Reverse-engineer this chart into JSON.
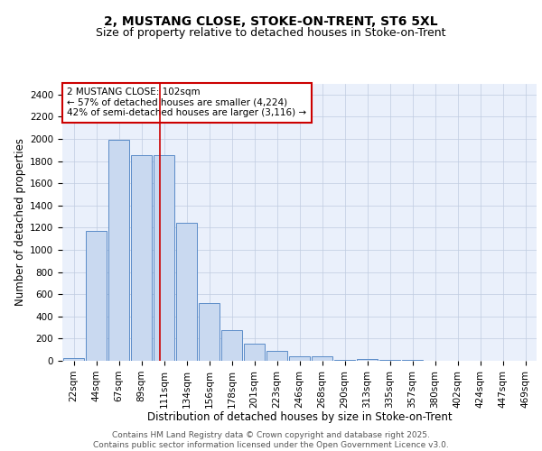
{
  "title1": "2, MUSTANG CLOSE, STOKE-ON-TRENT, ST6 5XL",
  "title2": "Size of property relative to detached houses in Stoke-on-Trent",
  "xlabel": "Distribution of detached houses by size in Stoke-on-Trent",
  "ylabel": "Number of detached properties",
  "bar_labels": [
    "22sqm",
    "44sqm",
    "67sqm",
    "89sqm",
    "111sqm",
    "134sqm",
    "156sqm",
    "178sqm",
    "201sqm",
    "223sqm",
    "246sqm",
    "268sqm",
    "290sqm",
    "313sqm",
    "335sqm",
    "357sqm",
    "380sqm",
    "402sqm",
    "424sqm",
    "447sqm",
    "469sqm"
  ],
  "bar_values": [
    28,
    1170,
    1990,
    1850,
    1850,
    1245,
    520,
    275,
    155,
    90,
    40,
    40,
    12,
    20,
    5,
    5,
    3,
    2,
    1,
    1,
    1
  ],
  "bar_color": "#c9d9f0",
  "bar_edge_color": "#5b8cc8",
  "vline_x": 3.8,
  "vline_color": "#cc0000",
  "annotation_text": "2 MUSTANG CLOSE: 102sqm\n← 57% of detached houses are smaller (4,224)\n42% of semi-detached houses are larger (3,116) →",
  "annotation_box_color": "#ffffff",
  "annotation_box_edge": "#cc0000",
  "ylim": [
    0,
    2500
  ],
  "yticks": [
    0,
    200,
    400,
    600,
    800,
    1000,
    1200,
    1400,
    1600,
    1800,
    2000,
    2200,
    2400
  ],
  "bg_color": "#eaf0fb",
  "footer_line1": "Contains HM Land Registry data © Crown copyright and database right 2025.",
  "footer_line2": "Contains public sector information licensed under the Open Government Licence v3.0.",
  "title1_fontsize": 10,
  "title2_fontsize": 9,
  "xlabel_fontsize": 8.5,
  "ylabel_fontsize": 8.5,
  "tick_fontsize": 7.5,
  "annotation_fontsize": 7.5,
  "footer_fontsize": 6.5
}
